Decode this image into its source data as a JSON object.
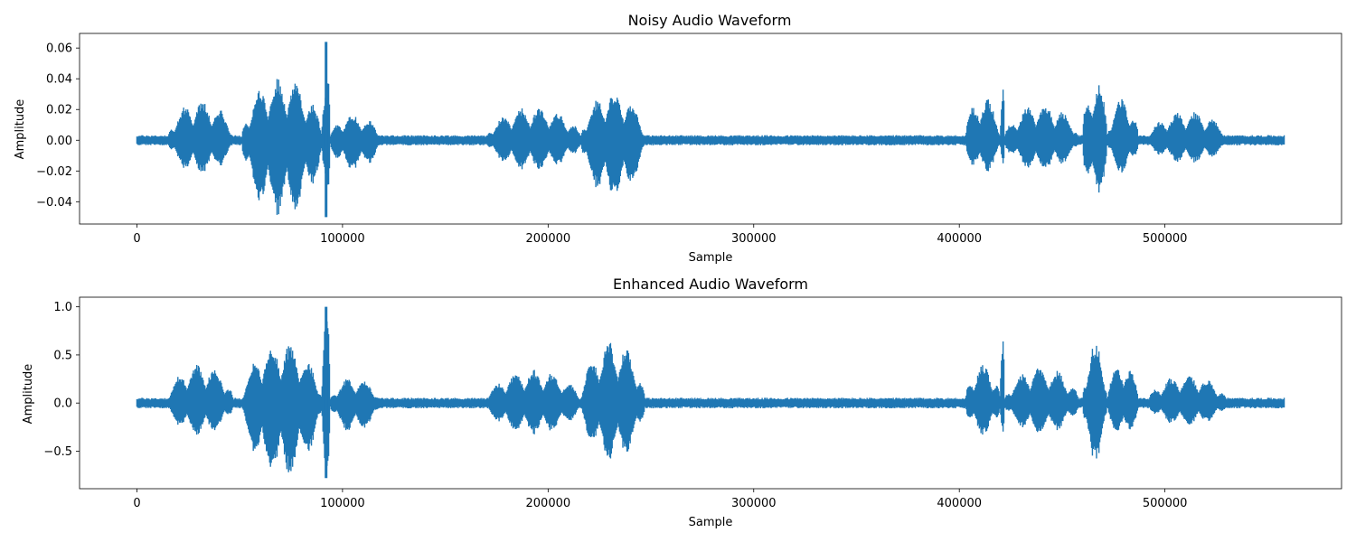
{
  "chart_data": [
    {
      "type": "line",
      "title": "Noisy Audio Waveform",
      "xlabel": "Sample",
      "ylabel": "Amplitude",
      "xlim": [
        -27900,
        585900
      ],
      "ylim": [
        -0.0545,
        0.0695
      ],
      "x_ticks": [
        0,
        100000,
        200000,
        300000,
        400000,
        500000
      ],
      "x_tick_labels": [
        "0",
        "100000",
        "200000",
        "300000",
        "400000",
        "500000"
      ],
      "y_ticks": [
        -0.04,
        -0.02,
        0.0,
        0.02,
        0.04,
        0.06
      ],
      "y_tick_labels": [
        "−0.04",
        "−0.02",
        "0.00",
        "0.02",
        "0.04",
        "0.06"
      ],
      "grid": false,
      "color": "#1f77b4",
      "samples": 558000,
      "noise_floor": 0.003,
      "peak_max": 0.064,
      "peak_min": -0.05,
      "bursts": [
        {
          "start": 15000,
          "end": 47000,
          "max": 0.026,
          "min": -0.022
        },
        {
          "start": 51000,
          "end": 90000,
          "max": 0.041,
          "min": -0.05
        },
        {
          "start": 90000,
          "end": 94000,
          "max": 0.064,
          "min": -0.05
        },
        {
          "start": 94000,
          "end": 118000,
          "max": 0.017,
          "min": -0.02
        },
        {
          "start": 170000,
          "end": 216000,
          "max": 0.022,
          "min": -0.02
        },
        {
          "start": 216000,
          "end": 247000,
          "max": 0.032,
          "min": -0.038
        },
        {
          "start": 403000,
          "end": 420000,
          "max": 0.029,
          "min": -0.022
        },
        {
          "start": 420000,
          "end": 422000,
          "max": 0.044,
          "min": -0.02
        },
        {
          "start": 422000,
          "end": 458000,
          "max": 0.024,
          "min": -0.02
        },
        {
          "start": 460000,
          "end": 472000,
          "max": 0.041,
          "min": -0.039
        },
        {
          "start": 472000,
          "end": 487000,
          "max": 0.028,
          "min": -0.022
        },
        {
          "start": 492000,
          "end": 530000,
          "max": 0.019,
          "min": -0.015
        }
      ]
    },
    {
      "type": "line",
      "title": "Enhanced Audio Waveform",
      "xlabel": "Sample",
      "ylabel": "Amplitude",
      "xlim": [
        -27900,
        585900
      ],
      "ylim": [
        -0.89,
        1.1
      ],
      "x_ticks": [
        0,
        100000,
        200000,
        300000,
        400000,
        500000
      ],
      "x_tick_labels": [
        "0",
        "100000",
        "200000",
        "300000",
        "400000",
        "500000"
      ],
      "y_ticks": [
        -0.5,
        0.0,
        0.5,
        1.0
      ],
      "y_tick_labels": [
        "−0.5",
        "0.0",
        "0.5",
        "1.0"
      ],
      "grid": false,
      "color": "#1f77b4",
      "samples": 558000,
      "noise_floor": 0.05,
      "peak_max": 1.0,
      "peak_min": -0.78,
      "bursts": [
        {
          "start": 15000,
          "end": 47000,
          "max": 0.41,
          "min": -0.34
        },
        {
          "start": 51000,
          "end": 90000,
          "max": 0.64,
          "min": -0.78
        },
        {
          "start": 90000,
          "end": 94000,
          "max": 1.0,
          "min": -0.77
        },
        {
          "start": 94000,
          "end": 118000,
          "max": 0.27,
          "min": -0.31
        },
        {
          "start": 170000,
          "end": 216000,
          "max": 0.35,
          "min": -0.33
        },
        {
          "start": 216000,
          "end": 247000,
          "max": 0.65,
          "min": -0.6
        },
        {
          "start": 403000,
          "end": 420000,
          "max": 0.41,
          "min": -0.34
        },
        {
          "start": 420000,
          "end": 422000,
          "max": 0.69,
          "min": -0.32
        },
        {
          "start": 422000,
          "end": 458000,
          "max": 0.38,
          "min": -0.32
        },
        {
          "start": 460000,
          "end": 472000,
          "max": 0.64,
          "min": -0.62
        },
        {
          "start": 472000,
          "end": 487000,
          "max": 0.44,
          "min": -0.36
        },
        {
          "start": 492000,
          "end": 530000,
          "max": 0.3,
          "min": -0.24
        }
      ]
    }
  ]
}
